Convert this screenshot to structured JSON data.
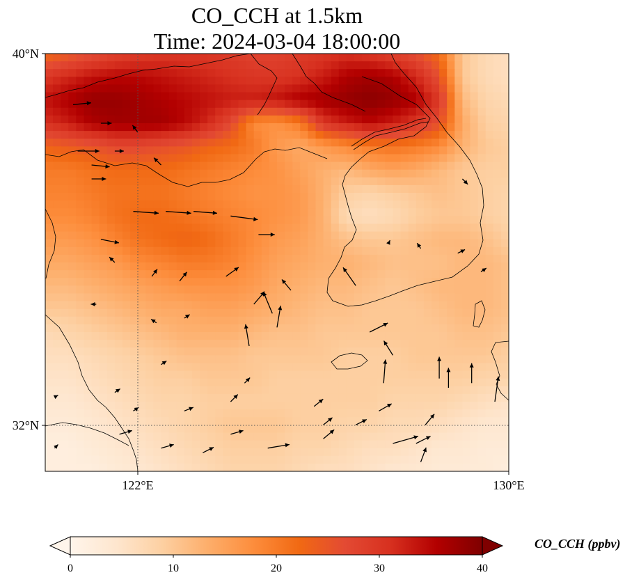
{
  "title": {
    "line1": "CO_CCH at 1.5km",
    "line2": "Time: 2024-03-04 18:00:00"
  },
  "map": {
    "extent": {
      "lon_min": 120,
      "lon_max": 130,
      "lat_min": 31,
      "lat_max": 40
    },
    "gridlines": {
      "lons": [
        122
      ],
      "lats": [
        32
      ]
    },
    "lon_ticks": [
      {
        "value": 122,
        "label": "122°E"
      },
      {
        "value": 130,
        "label": "130°E"
      }
    ],
    "lat_ticks": [
      {
        "value": 40,
        "label": "40°N"
      },
      {
        "value": 32,
        "label": "32°N"
      }
    ]
  },
  "colorbar": {
    "label": "CO_CCH (ppbv)",
    "min": 0,
    "max": 40,
    "ticks": [
      {
        "value": 0,
        "label": "0"
      },
      {
        "value": 10,
        "label": "10"
      },
      {
        "value": 20,
        "label": "20"
      },
      {
        "value": 30,
        "label": "30"
      },
      {
        "value": 40,
        "label": "40"
      }
    ],
    "colors": [
      "#fff5eb",
      "#fee6ce",
      "#fdd0a2",
      "#fdae6b",
      "#fd8d3c",
      "#f16913",
      "#e34a33",
      "#d7301f",
      "#b30000",
      "#7f0000"
    ]
  },
  "concentration_field": {
    "description_values_ppbv": "coarse grid, rows from north (lat 40) to south, cols from west (lon 120) to east",
    "lat_step": 0.5,
    "lon_step": 0.5,
    "rows": [
      [
        22,
        24,
        26,
        28,
        29,
        30,
        30,
        30,
        29,
        28,
        28,
        29,
        30,
        31,
        30,
        28,
        26,
        22,
        10,
        7,
        6
      ],
      [
        30,
        32,
        34,
        35,
        35,
        34,
        33,
        32,
        31,
        30,
        30,
        31,
        33,
        36,
        37,
        36,
        32,
        26,
        10,
        7,
        6
      ],
      [
        34,
        36,
        38,
        38,
        37,
        36,
        35,
        34,
        33,
        33,
        34,
        36,
        37,
        38,
        39,
        38,
        36,
        30,
        12,
        8,
        7
      ],
      [
        31,
        33,
        36,
        37,
        37,
        37,
        35,
        32,
        27,
        18,
        17,
        20,
        30,
        33,
        35,
        33,
        30,
        26,
        14,
        9,
        8
      ],
      [
        23,
        24,
        25,
        27,
        27,
        26,
        25,
        23,
        22,
        20,
        16,
        14,
        16,
        18,
        20,
        21,
        20,
        18,
        13,
        10,
        9
      ],
      [
        20,
        20,
        21,
        22,
        22,
        22,
        21,
        20,
        19,
        18,
        17,
        15,
        13,
        12,
        14,
        15,
        14,
        12,
        10,
        9,
        9
      ],
      [
        19,
        19,
        20,
        21,
        21,
        21,
        20,
        19,
        18,
        17,
        17,
        16,
        13,
        9,
        8,
        9,
        10,
        11,
        10,
        9,
        8
      ],
      [
        18,
        18,
        19,
        21,
        22,
        22,
        21,
        20,
        19,
        18,
        17,
        16,
        13,
        7,
        6,
        7,
        9,
        10,
        10,
        9,
        8
      ],
      [
        16,
        16,
        17,
        19,
        21,
        22,
        23,
        22,
        20,
        18,
        16,
        15,
        13,
        11,
        10,
        10,
        11,
        12,
        12,
        11,
        9
      ],
      [
        14,
        14,
        15,
        16,
        18,
        19,
        20,
        20,
        19,
        17,
        15,
        14,
        13,
        13,
        12,
        11,
        11,
        11,
        12,
        12,
        11
      ],
      [
        12,
        12,
        13,
        14,
        15,
        16,
        17,
        17,
        17,
        16,
        14,
        13,
        12,
        12,
        11,
        10,
        11,
        12,
        12,
        12,
        11
      ],
      [
        10,
        10,
        11,
        12,
        13,
        14,
        14,
        15,
        15,
        14,
        13,
        12,
        11,
        11,
        10,
        10,
        10,
        11,
        12,
        12,
        11
      ],
      [
        7,
        8,
        9,
        10,
        11,
        12,
        13,
        13,
        13,
        12,
        11,
        11,
        10,
        10,
        10,
        10,
        10,
        10,
        11,
        11,
        10
      ],
      [
        6,
        6,
        7,
        8,
        9,
        10,
        11,
        11,
        11,
        10,
        10,
        10,
        10,
        9,
        9,
        9,
        10,
        10,
        10,
        10,
        9
      ],
      [
        5,
        5,
        6,
        7,
        8,
        9,
        9,
        10,
        10,
        10,
        9,
        9,
        9,
        9,
        9,
        9,
        9,
        9,
        9,
        8,
        8
      ],
      [
        4,
        4,
        5,
        6,
        7,
        8,
        8,
        9,
        9,
        9,
        9,
        9,
        9,
        9,
        9,
        8,
        8,
        8,
        7,
        6,
        5
      ],
      [
        3,
        3,
        4,
        5,
        6,
        7,
        8,
        9,
        10,
        10,
        10,
        9,
        9,
        8,
        8,
        7,
        7,
        6,
        5,
        4,
        4
      ],
      [
        2,
        2,
        3,
        4,
        5,
        6,
        7,
        8,
        9,
        9,
        9,
        8,
        8,
        7,
        6,
        6,
        5,
        4,
        4,
        3,
        3
      ],
      [
        2,
        2,
        2,
        3,
        4,
        5,
        6,
        7,
        8,
        8,
        8,
        7,
        6,
        6,
        5,
        4,
        4,
        3,
        3,
        3,
        2
      ]
    ]
  },
  "wind_vectors": [
    {
      "lon": 120.6,
      "lat": 38.9,
      "u": 1.0,
      "v": 0.1
    },
    {
      "lon": 121.2,
      "lat": 38.5,
      "u": 0.6,
      "v": 0.0
    },
    {
      "lon": 120.7,
      "lat": 37.9,
      "u": 1.2,
      "v": 0.0
    },
    {
      "lon": 121.0,
      "lat": 37.6,
      "u": 1.0,
      "v": -0.1
    },
    {
      "lon": 121.0,
      "lat": 37.3,
      "u": 0.8,
      "v": 0.0
    },
    {
      "lon": 122.0,
      "lat": 38.3,
      "u": -0.3,
      "v": 0.4
    },
    {
      "lon": 121.5,
      "lat": 37.9,
      "u": 0.5,
      "v": 0.0
    },
    {
      "lon": 122.5,
      "lat": 37.6,
      "u": -0.4,
      "v": 0.4
    },
    {
      "lon": 121.9,
      "lat": 36.6,
      "u": 1.4,
      "v": -0.1
    },
    {
      "lon": 122.6,
      "lat": 36.6,
      "u": 1.4,
      "v": -0.1
    },
    {
      "lon": 123.2,
      "lat": 36.6,
      "u": 1.3,
      "v": -0.1
    },
    {
      "lon": 124.0,
      "lat": 36.5,
      "u": 1.5,
      "v": -0.2
    },
    {
      "lon": 121.2,
      "lat": 36.0,
      "u": 1.0,
      "v": -0.2
    },
    {
      "lon": 121.5,
      "lat": 35.5,
      "u": -0.3,
      "v": 0.3
    },
    {
      "lon": 122.3,
      "lat": 35.2,
      "u": 0.3,
      "v": 0.4
    },
    {
      "lon": 122.9,
      "lat": 35.1,
      "u": 0.4,
      "v": 0.5
    },
    {
      "lon": 123.9,
      "lat": 35.2,
      "u": 0.7,
      "v": 0.5
    },
    {
      "lon": 124.6,
      "lat": 36.1,
      "u": 0.9,
      "v": 0.0
    },
    {
      "lon": 125.3,
      "lat": 34.9,
      "u": -0.5,
      "v": 0.6
    },
    {
      "lon": 124.5,
      "lat": 34.6,
      "u": 0.6,
      "v": 0.7
    },
    {
      "lon": 125.0,
      "lat": 34.1,
      "u": 0.2,
      "v": 1.2
    },
    {
      "lon": 124.9,
      "lat": 34.4,
      "u": -0.5,
      "v": 1.2
    },
    {
      "lon": 124.4,
      "lat": 33.7,
      "u": -0.2,
      "v": 1.2
    },
    {
      "lon": 126.7,
      "lat": 35.0,
      "u": -0.7,
      "v": 1.0
    },
    {
      "lon": 127.0,
      "lat": 34.0,
      "u": 1.0,
      "v": 0.5
    },
    {
      "lon": 127.5,
      "lat": 33.5,
      "u": -0.5,
      "v": 0.8
    },
    {
      "lon": 127.3,
      "lat": 32.9,
      "u": 0.1,
      "v": 1.3
    },
    {
      "lon": 128.5,
      "lat": 33.0,
      "u": 0.0,
      "v": 1.2
    },
    {
      "lon": 128.7,
      "lat": 32.8,
      "u": 0.0,
      "v": 1.1
    },
    {
      "lon": 129.2,
      "lat": 32.9,
      "u": 0.0,
      "v": 1.1
    },
    {
      "lon": 129.7,
      "lat": 32.5,
      "u": 0.2,
      "v": 1.4
    },
    {
      "lon": 128.1,
      "lat": 35.8,
      "u": -0.2,
      "v": 0.3
    },
    {
      "lon": 127.4,
      "lat": 35.9,
      "u": 0.1,
      "v": 0.2
    },
    {
      "lon": 128.9,
      "lat": 35.7,
      "u": 0.4,
      "v": 0.2
    },
    {
      "lon": 129.4,
      "lat": 35.3,
      "u": 0.3,
      "v": 0.2
    },
    {
      "lon": 129.0,
      "lat": 37.3,
      "u": 0.3,
      "v": -0.3
    },
    {
      "lon": 122.5,
      "lat": 33.3,
      "u": 0.3,
      "v": 0.2
    },
    {
      "lon": 121.5,
      "lat": 32.7,
      "u": 0.3,
      "v": 0.2
    },
    {
      "lon": 121.9,
      "lat": 32.3,
      "u": 0.3,
      "v": 0.2
    },
    {
      "lon": 123.0,
      "lat": 32.3,
      "u": 0.5,
      "v": 0.2
    },
    {
      "lon": 124.0,
      "lat": 32.5,
      "u": 0.4,
      "v": 0.4
    },
    {
      "lon": 124.3,
      "lat": 32.9,
      "u": 0.3,
      "v": 0.3
    },
    {
      "lon": 125.8,
      "lat": 32.4,
      "u": 0.5,
      "v": 0.4
    },
    {
      "lon": 126.0,
      "lat": 32.0,
      "u": 0.5,
      "v": 0.4
    },
    {
      "lon": 126.7,
      "lat": 32.0,
      "u": 0.6,
      "v": 0.3
    },
    {
      "lon": 127.2,
      "lat": 32.3,
      "u": 0.7,
      "v": 0.4
    },
    {
      "lon": 128.0,
      "lat": 31.6,
      "u": 0.8,
      "v": 0.4
    },
    {
      "lon": 128.2,
      "lat": 32.0,
      "u": 0.5,
      "v": 0.6
    },
    {
      "lon": 121.6,
      "lat": 31.8,
      "u": 0.7,
      "v": 0.2
    },
    {
      "lon": 122.5,
      "lat": 31.5,
      "u": 0.7,
      "v": 0.2
    },
    {
      "lon": 123.4,
      "lat": 31.4,
      "u": 0.6,
      "v": 0.3
    },
    {
      "lon": 124.0,
      "lat": 31.8,
      "u": 0.7,
      "v": 0.2
    },
    {
      "lon": 124.8,
      "lat": 31.5,
      "u": 1.2,
      "v": 0.2
    },
    {
      "lon": 126.0,
      "lat": 31.7,
      "u": 0.6,
      "v": 0.5
    },
    {
      "lon": 127.5,
      "lat": 31.6,
      "u": 1.4,
      "v": 0.4
    },
    {
      "lon": 128.1,
      "lat": 31.2,
      "u": 0.3,
      "v": 0.8
    },
    {
      "lon": 120.2,
      "lat": 32.6,
      "u": 0.2,
      "v": 0.1
    },
    {
      "lon": 120.2,
      "lat": 31.5,
      "u": 0.2,
      "v": 0.2
    },
    {
      "lon": 121.1,
      "lat": 34.6,
      "u": -0.3,
      "v": 0.0
    },
    {
      "lon": 123.0,
      "lat": 34.3,
      "u": 0.3,
      "v": 0.2
    },
    {
      "lon": 122.4,
      "lat": 34.2,
      "u": -0.3,
      "v": 0.2
    }
  ]
}
